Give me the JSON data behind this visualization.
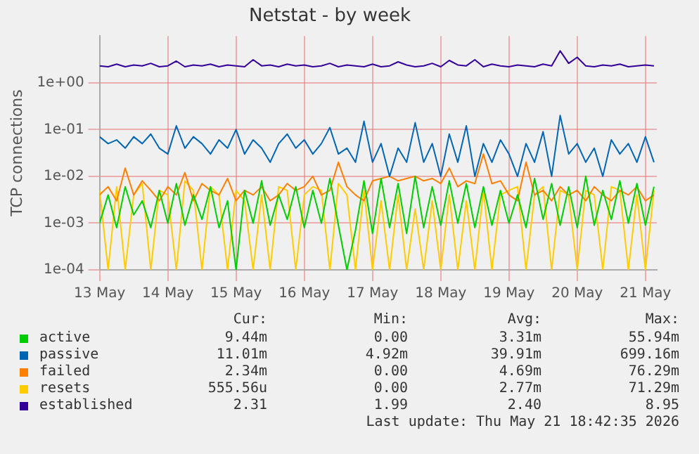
{
  "chart_data": {
    "type": "line",
    "title": "Netstat - by week",
    "ylabel": "TCP connections",
    "log": "y",
    "grid": true,
    "legend": "bottom",
    "marker": "none",
    "line_style": "solid",
    "x": [
      "2026-05-13T00:00",
      "2026-05-13T03:00",
      "2026-05-13T06:00",
      "2026-05-13T09:00",
      "2026-05-13T12:00",
      "2026-05-13T15:00",
      "2026-05-13T18:00",
      "2026-05-13T21:00",
      "2026-05-14T00:00",
      "2026-05-14T03:00",
      "2026-05-14T06:00",
      "2026-05-14T09:00",
      "2026-05-14T12:00",
      "2026-05-14T15:00",
      "2026-05-14T18:00",
      "2026-05-14T21:00",
      "2026-05-15T00:00",
      "2026-05-15T03:00",
      "2026-05-15T06:00",
      "2026-05-15T09:00",
      "2026-05-15T12:00",
      "2026-05-15T15:00",
      "2026-05-15T18:00",
      "2026-05-15T21:00",
      "2026-05-16T00:00",
      "2026-05-16T03:00",
      "2026-05-16T06:00",
      "2026-05-16T09:00",
      "2026-05-16T12:00",
      "2026-05-16T15:00",
      "2026-05-16T18:00",
      "2026-05-16T21:00",
      "2026-05-17T00:00",
      "2026-05-17T03:00",
      "2026-05-17T06:00",
      "2026-05-17T09:00",
      "2026-05-17T12:00",
      "2026-05-17T15:00",
      "2026-05-17T18:00",
      "2026-05-17T21:00",
      "2026-05-18T00:00",
      "2026-05-18T03:00",
      "2026-05-18T06:00",
      "2026-05-18T09:00",
      "2026-05-18T12:00",
      "2026-05-18T15:00",
      "2026-05-18T18:00",
      "2026-05-18T21:00",
      "2026-05-19T00:00",
      "2026-05-19T03:00",
      "2026-05-19T06:00",
      "2026-05-19T09:00",
      "2026-05-19T12:00",
      "2026-05-19T15:00",
      "2026-05-19T18:00",
      "2026-05-19T21:00",
      "2026-05-20T00:00",
      "2026-05-20T03:00",
      "2026-05-20T06:00",
      "2026-05-20T09:00",
      "2026-05-20T12:00",
      "2026-05-20T15:00",
      "2026-05-20T18:00",
      "2026-05-20T21:00",
      "2026-05-21T00:00",
      "2026-05-21T03:00"
    ],
    "xlim": [
      "2026-05-13T00:00",
      "2026-05-21T04:00"
    ],
    "xticks": [
      {
        "value": "2026-05-13",
        "label": "13 May"
      },
      {
        "value": "2026-05-14",
        "label": "14 May"
      },
      {
        "value": "2026-05-15",
        "label": "15 May"
      },
      {
        "value": "2026-05-16",
        "label": "16 May"
      },
      {
        "value": "2026-05-17",
        "label": "17 May"
      },
      {
        "value": "2026-05-18",
        "label": "18 May"
      },
      {
        "value": "2026-05-19",
        "label": "19 May"
      },
      {
        "value": "2026-05-20",
        "label": "20 May"
      },
      {
        "value": "2026-05-21",
        "label": "21 May"
      }
    ],
    "ylim": [
      0.0001,
      10
    ],
    "yticks": [
      {
        "value": 0.0001,
        "label": "1e-04"
      },
      {
        "value": 0.001,
        "label": "1e-03"
      },
      {
        "value": 0.01,
        "label": "1e-02"
      },
      {
        "value": 0.1,
        "label": "1e-01"
      },
      {
        "value": 1,
        "label": "1e+00"
      }
    ],
    "series": [
      {
        "name": "active",
        "color": "#00cc00",
        "values": [
          0.001,
          0.004,
          0.0008,
          0.006,
          0.0015,
          0.003,
          0.0008,
          0.005,
          0.001,
          0.007,
          0.0009,
          0.004,
          0.0012,
          0.006,
          0.0008,
          0.003,
          0.0001,
          0.005,
          0.001,
          0.008,
          0.0009,
          0.004,
          0.0012,
          0.006,
          0.0008,
          0.005,
          0.001,
          0.009,
          0.0009,
          0.0001,
          0.0007,
          0.008,
          0.0006,
          0.009,
          0.0008,
          0.007,
          0.0006,
          0.01,
          0.0008,
          0.006,
          0.0009,
          0.008,
          0.001,
          0.007,
          0.0008,
          0.006,
          0.0009,
          0.005,
          0.001,
          0.004,
          0.0008,
          0.009,
          0.0012,
          0.007,
          0.0009,
          0.006,
          0.0008,
          0.01,
          0.0009,
          0.005,
          0.0012,
          0.008,
          0.001,
          0.007,
          0.0009,
          0.006
        ]
      },
      {
        "name": "passive",
        "color": "#0066b3",
        "values": [
          0.07,
          0.05,
          0.06,
          0.04,
          0.07,
          0.05,
          0.08,
          0.04,
          0.03,
          0.12,
          0.04,
          0.07,
          0.05,
          0.03,
          0.06,
          0.04,
          0.1,
          0.03,
          0.06,
          0.04,
          0.02,
          0.05,
          0.08,
          0.04,
          0.06,
          0.03,
          0.05,
          0.11,
          0.03,
          0.04,
          0.02,
          0.15,
          0.02,
          0.05,
          0.01,
          0.04,
          0.02,
          0.14,
          0.02,
          0.05,
          0.01,
          0.08,
          0.02,
          0.12,
          0.01,
          0.05,
          0.02,
          0.06,
          0.03,
          0.01,
          0.05,
          0.02,
          0.09,
          0.01,
          0.2,
          0.03,
          0.05,
          0.02,
          0.04,
          0.01,
          0.06,
          0.03,
          0.05,
          0.02,
          0.07,
          0.02
        ]
      },
      {
        "name": "failed",
        "color": "#ff8000",
        "values": [
          0.004,
          0.006,
          0.003,
          0.015,
          0.004,
          0.008,
          0.005,
          0.003,
          0.006,
          0.004,
          0.012,
          0.003,
          0.007,
          0.005,
          0.004,
          0.009,
          0.003,
          0.005,
          0.004,
          0.006,
          0.003,
          0.004,
          0.007,
          0.005,
          0.006,
          0.01,
          0.004,
          0.005,
          0.02,
          0.006,
          0.004,
          0.003,
          0.008,
          0.009,
          0.01,
          0.008,
          0.009,
          0.01,
          0.008,
          0.009,
          0.007,
          0.015,
          0.006,
          0.008,
          0.007,
          0.03,
          0.007,
          0.008,
          0.004,
          0.003,
          0.02,
          0.004,
          0.005,
          0.003,
          0.006,
          0.004,
          0.005,
          0.003,
          0.006,
          0.004,
          0.003,
          0.005,
          0.004,
          0.006,
          0.003,
          0.004
        ]
      },
      {
        "name": "resets",
        "color": "#ffcc00",
        "values": [
          0.005,
          0.0001,
          0.006,
          0.0001,
          0.004,
          0.007,
          0.0001,
          0.005,
          0.004,
          0.0001,
          0.008,
          0.005,
          0.0001,
          0.006,
          0.004,
          0.0001,
          0.005,
          0.003,
          0.0001,
          0.004,
          0.0001,
          0.006,
          0.005,
          0.0001,
          0.004,
          0.006,
          0.005,
          0.0001,
          0.007,
          0.004,
          0.0001,
          0.005,
          0.0001,
          0.003,
          0.0001,
          0.004,
          0.0001,
          0.002,
          0.0001,
          0.003,
          0.0001,
          0.004,
          0.0001,
          0.003,
          0.0001,
          0.005,
          0.0001,
          0.004,
          0.005,
          0.006,
          0.0001,
          0.004,
          0.006,
          0.0001,
          0.005,
          0.004,
          0.0001,
          0.005,
          0.004,
          0.0001,
          0.006,
          0.005,
          0.0001,
          0.004,
          0.0001,
          0.005
        ]
      },
      {
        "name": "established",
        "color": "#330099",
        "values": [
          2.3,
          2.2,
          2.5,
          2.2,
          2.4,
          2.3,
          2.6,
          2.2,
          2.3,
          2.9,
          2.2,
          2.4,
          2.3,
          2.5,
          2.2,
          2.4,
          2.3,
          2.2,
          3.1,
          2.3,
          2.4,
          2.2,
          2.5,
          2.3,
          2.4,
          2.2,
          2.3,
          2.6,
          2.2,
          2.4,
          2.3,
          2.2,
          2.5,
          2.2,
          2.3,
          2.8,
          2.4,
          2.2,
          2.3,
          2.6,
          2.2,
          3.0,
          2.4,
          2.3,
          3.1,
          2.2,
          2.5,
          2.3,
          2.2,
          2.4,
          2.3,
          2.2,
          2.5,
          2.3,
          4.8,
          2.6,
          3.5,
          2.3,
          2.2,
          2.4,
          2.3,
          2.5,
          2.2,
          2.3,
          2.4,
          2.3
        ]
      }
    ],
    "annotations": [
      "Cur:",
      "Min:",
      "Avg:",
      "Max:",
      "9.44m",
      "0.00",
      "3.31m",
      "55.94m",
      "11.01m",
      "4.92m",
      "39.91m",
      "699.16m",
      "2.34m",
      "0.00",
      "4.69m",
      "76.29m",
      "555.56u",
      "0.00",
      "2.77m",
      "71.29m",
      "2.31",
      "1.99",
      "2.40",
      "8.95",
      "Last update: Thu May 21 18:42:35 2026"
    ]
  }
}
